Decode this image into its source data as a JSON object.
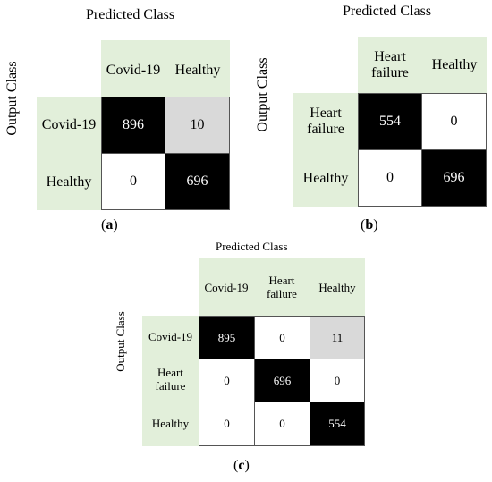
{
  "matrices": {
    "a": {
      "predicted_title": "Predicted Class",
      "output_title": "Output Class",
      "col_labels": [
        "Covid-19",
        "Healthy"
      ],
      "row_labels": [
        "Covid-19",
        "Healthy"
      ],
      "values": [
        [
          "896",
          "10"
        ],
        [
          "0",
          "696"
        ]
      ],
      "cell_shades": [
        [
          "black",
          "gray"
        ],
        [
          "white",
          "black"
        ]
      ],
      "caption_open": "(",
      "caption_letter": "a",
      "caption_close": ")"
    },
    "b": {
      "predicted_title": "Predicted Class",
      "output_title": "Output Class",
      "col_labels": [
        "Heart\nfailure",
        "Healthy"
      ],
      "row_labels": [
        "Heart\nfailure",
        "Healthy"
      ],
      "values": [
        [
          "554",
          "0"
        ],
        [
          "0",
          "696"
        ]
      ],
      "cell_shades": [
        [
          "black",
          "white"
        ],
        [
          "white",
          "black"
        ]
      ],
      "caption_open": "(",
      "caption_letter": "b",
      "caption_close": ")"
    },
    "c": {
      "predicted_title": "Predicted Class",
      "output_title": "Output Class",
      "col_labels": [
        "Covid-19",
        "Heart\nfailure",
        "Healthy"
      ],
      "row_labels": [
        "Covid-19",
        "Heart\nfailure",
        "Healthy"
      ],
      "values": [
        [
          "895",
          "0",
          "11"
        ],
        [
          "0",
          "696",
          "0"
        ],
        [
          "0",
          "0",
          "554"
        ]
      ],
      "cell_shades": [
        [
          "black",
          "white",
          "gray"
        ],
        [
          "white",
          "black",
          "white"
        ],
        [
          "white",
          "white",
          "black"
        ]
      ],
      "caption_open": "(",
      "caption_letter": "c",
      "caption_close": ")"
    }
  }
}
